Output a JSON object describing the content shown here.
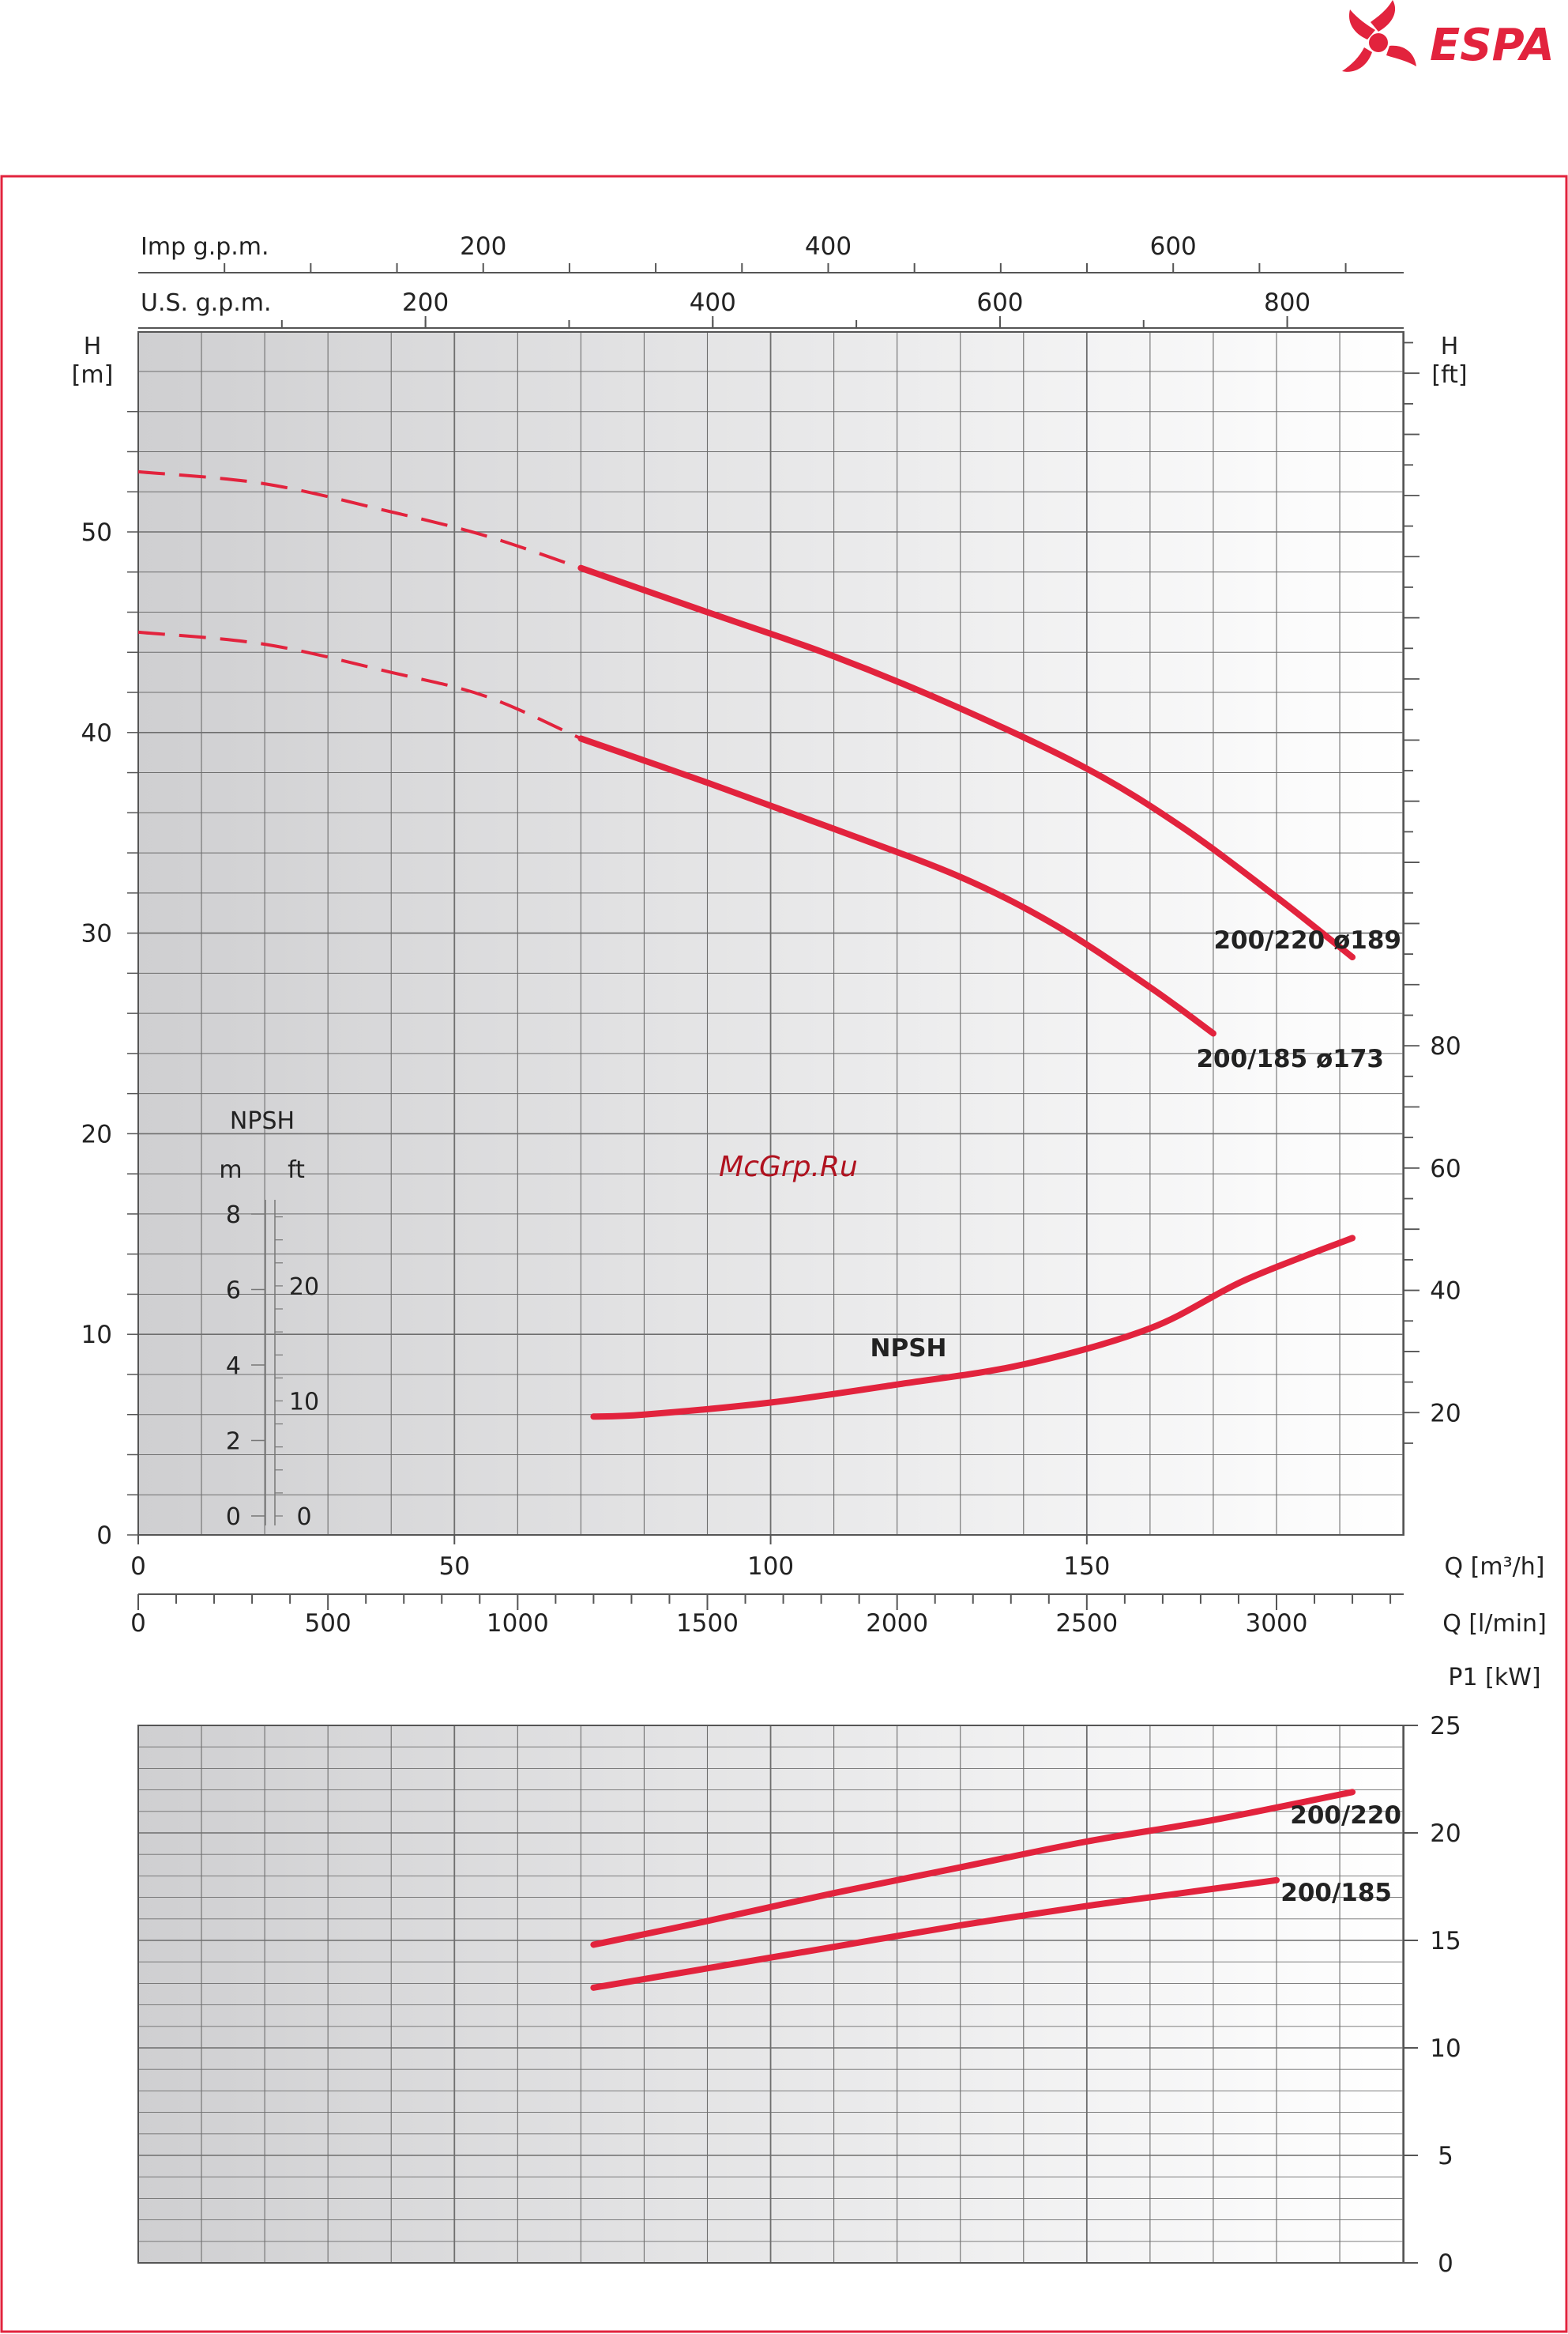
{
  "brand": {
    "name": "ESPA",
    "color": "#e2233d"
  },
  "watermark": "McGrp.Ru",
  "colors": {
    "curve": "#e2233d",
    "grid": "#6e6e6e",
    "frame": "#e2233d"
  },
  "chart_data": [
    {
      "type": "line",
      "x_unit_label": "Q [m³/h]",
      "x_secondary_label": "Q [l/min]",
      "x_top_labels": {
        "imp": "Imp g.p.m.",
        "us": "U.S. g.p.m."
      },
      "y_left_label": {
        "line1": "H",
        "line2": "[m]"
      },
      "y_right_label": {
        "line1": "H",
        "line2": "[ft]"
      },
      "xlim": [
        0,
        200
      ],
      "ylim": [
        0,
        60
      ],
      "x_ticks": [
        "0",
        "50",
        "100",
        "150"
      ],
      "lmin_ticks": [
        "0",
        "500",
        "1000",
        "1500",
        "2000",
        "2500",
        "3000"
      ],
      "us_gpm_ticks": [
        "200",
        "400",
        "600",
        "800"
      ],
      "imp_gpm_ticks": [
        "200",
        "400",
        "600"
      ],
      "y_ticks": [
        "0",
        "10",
        "20",
        "30",
        "40",
        "50"
      ],
      "ft_ticks": [
        "20",
        "40",
        "60",
        "80"
      ],
      "series": [
        {
          "name": "200/220 ø189",
          "dashed_until": 70,
          "points": [
            [
              0,
              53
            ],
            [
              20,
              52.4
            ],
            [
              40,
              51
            ],
            [
              55,
              49.8
            ],
            [
              70,
              48.2
            ],
            [
              90,
              46
            ],
            [
              110,
              43.8
            ],
            [
              130,
              41.2
            ],
            [
              150,
              38.2
            ],
            [
              165,
              35.3
            ],
            [
              180,
              31.8
            ],
            [
              192,
              28.8
            ]
          ]
        },
        {
          "name": "200/185 ø173",
          "dashed_until": 70,
          "points": [
            [
              0,
              45
            ],
            [
              20,
              44.4
            ],
            [
              40,
              43
            ],
            [
              55,
              41.8
            ],
            [
              70,
              39.7
            ],
            [
              90,
              37.5
            ],
            [
              110,
              35.2
            ],
            [
              130,
              32.8
            ],
            [
              145,
              30.4
            ],
            [
              160,
              27.3
            ],
            [
              170,
              25
            ]
          ]
        },
        {
          "name": "NPSH",
          "points": [
            [
              72,
              5.9
            ],
            [
              80,
              6
            ],
            [
              100,
              6.6
            ],
            [
              120,
              7.5
            ],
            [
              140,
              8.5
            ],
            [
              160,
              10.3
            ],
            [
              175,
              12.7
            ],
            [
              192,
              14.8
            ]
          ]
        }
      ],
      "npsh_scale": {
        "title": "NPSH",
        "m_label": "m",
        "ft_label": "ft",
        "m_ticks": [
          "0",
          "2",
          "4",
          "6",
          "8"
        ],
        "ft_ticks": [
          "0",
          "10",
          "20"
        ]
      }
    },
    {
      "type": "line",
      "ylabel": "P1 [kW]",
      "xlim": [
        0,
        200
      ],
      "ylim": [
        0,
        25
      ],
      "y_ticks": [
        "0",
        "5",
        "10",
        "15",
        "20",
        "25"
      ],
      "series": [
        {
          "name": "200/220",
          "points": [
            [
              72,
              14.8
            ],
            [
              90,
              15.9
            ],
            [
              110,
              17.2
            ],
            [
              130,
              18.4
            ],
            [
              150,
              19.6
            ],
            [
              170,
              20.6
            ],
            [
              192,
              21.9
            ]
          ]
        },
        {
          "name": "200/185",
          "points": [
            [
              72,
              12.8
            ],
            [
              90,
              13.7
            ],
            [
              110,
              14.7
            ],
            [
              130,
              15.7
            ],
            [
              150,
              16.6
            ],
            [
              165,
              17.2
            ],
            [
              180,
              17.8
            ]
          ]
        }
      ]
    }
  ]
}
